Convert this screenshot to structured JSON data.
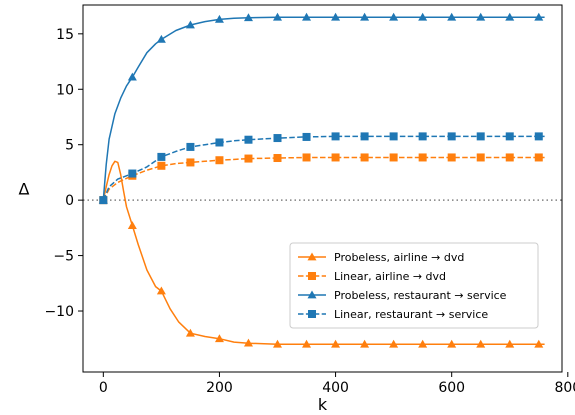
{
  "chart_data": {
    "type": "line",
    "title": "",
    "xlabel": "k",
    "ylabel": "Δ",
    "xlim": [
      -35,
      790
    ],
    "ylim": [
      -15.5,
      17.6
    ],
    "xticks": [
      0,
      200,
      400,
      600,
      800
    ],
    "yticks": [
      -10,
      -5,
      0,
      5,
      10,
      15
    ],
    "tick_labels_x": [
      "0",
      "200",
      "400",
      "600",
      "800"
    ],
    "tick_labels_y": [
      "−10",
      "−5",
      "0",
      "5",
      "10",
      "15"
    ],
    "grid": false,
    "reference_line": {
      "y": 0,
      "style": "dotted",
      "color": "#808080"
    },
    "legend_position": "lower-right",
    "series": [
      {
        "name": "Probeless, airline → dvd",
        "color": "#ff7f0e",
        "linestyle": "solid",
        "marker": "triangle",
        "x": [
          0,
          5,
          10,
          15,
          20,
          25,
          30,
          35,
          40,
          50,
          60,
          75,
          90,
          100,
          115,
          130,
          150,
          175,
          200,
          225,
          250,
          300,
          350,
          400,
          450,
          500,
          550,
          600,
          650,
          700,
          760
        ],
        "y": [
          0,
          1.2,
          2.3,
          3.1,
          3.5,
          3.4,
          2.3,
          0.8,
          -0.6,
          -2.3,
          -4.0,
          -6.3,
          -7.8,
          -8.2,
          -9.8,
          -11.0,
          -12.0,
          -12.3,
          -12.5,
          -12.8,
          -12.9,
          -13.0,
          -13.0,
          -13.0,
          -13.0,
          -13.0,
          -13.0,
          -13.0,
          -13.0,
          -13.0,
          -13.0
        ],
        "markers_x": [
          0,
          50,
          100,
          150,
          200,
          250,
          300,
          350,
          400,
          450,
          500,
          550,
          600,
          650,
          700,
          750
        ]
      },
      {
        "name": "Linear, airline → dvd",
        "color": "#ff7f0e",
        "linestyle": "dashed",
        "marker": "square",
        "x": [
          0,
          10,
          25,
          50,
          75,
          100,
          125,
          150,
          175,
          200,
          250,
          300,
          350,
          400,
          450,
          500,
          550,
          600,
          650,
          700,
          760
        ],
        "y": [
          0,
          1.0,
          1.6,
          2.2,
          2.7,
          3.1,
          3.3,
          3.4,
          3.5,
          3.6,
          3.75,
          3.8,
          3.85,
          3.85,
          3.85,
          3.85,
          3.85,
          3.85,
          3.85,
          3.85,
          3.85
        ],
        "markers_x": [
          0,
          50,
          100,
          150,
          200,
          250,
          300,
          350,
          400,
          450,
          500,
          550,
          600,
          650,
          700,
          750
        ]
      },
      {
        "name": "Probeless, restaurant → service",
        "color": "#1f77b4",
        "linestyle": "solid",
        "marker": "triangle",
        "x": [
          0,
          5,
          10,
          20,
          30,
          40,
          50,
          60,
          75,
          90,
          100,
          125,
          150,
          175,
          200,
          225,
          250,
          300,
          350,
          400,
          450,
          500,
          550,
          600,
          650,
          700,
          760
        ],
        "y": [
          0,
          3.2,
          5.5,
          7.8,
          9.2,
          10.3,
          11.1,
          12.0,
          13.3,
          14.1,
          14.5,
          15.3,
          15.8,
          16.1,
          16.3,
          16.4,
          16.45,
          16.5,
          16.5,
          16.5,
          16.5,
          16.5,
          16.5,
          16.5,
          16.5,
          16.5,
          16.5
        ],
        "markers_x": [
          0,
          50,
          100,
          150,
          200,
          250,
          300,
          350,
          400,
          450,
          500,
          550,
          600,
          650,
          700,
          750
        ]
      },
      {
        "name": "Linear, restaurant → service",
        "color": "#1f77b4",
        "linestyle": "dashed",
        "marker": "square",
        "x": [
          0,
          10,
          25,
          50,
          75,
          100,
          125,
          150,
          175,
          200,
          225,
          250,
          300,
          350,
          400,
          450,
          500,
          550,
          600,
          650,
          700,
          760
        ],
        "y": [
          0,
          1.2,
          1.9,
          2.4,
          3.0,
          3.9,
          4.4,
          4.8,
          5.0,
          5.2,
          5.35,
          5.45,
          5.6,
          5.7,
          5.75,
          5.75,
          5.75,
          5.75,
          5.75,
          5.75,
          5.75,
          5.75
        ],
        "markers_x": [
          0,
          50,
          100,
          150,
          200,
          250,
          300,
          350,
          400,
          450,
          500,
          550,
          600,
          650,
          700,
          750
        ]
      }
    ]
  }
}
